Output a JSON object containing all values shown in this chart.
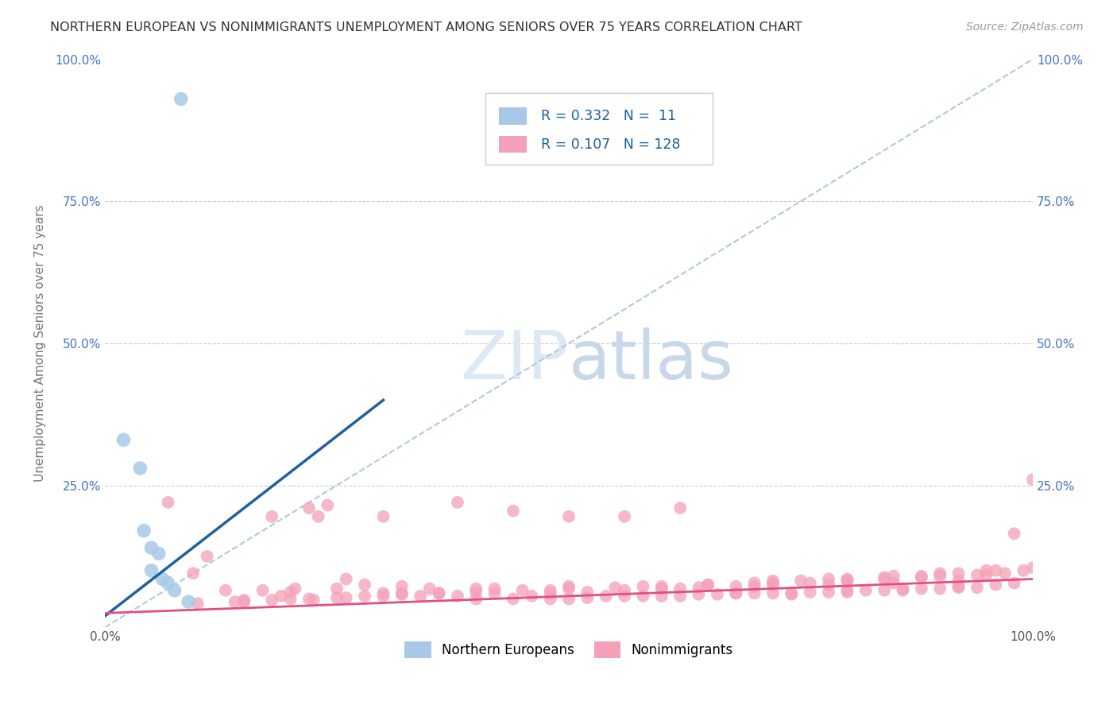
{
  "title": "NORTHERN EUROPEAN VS NONIMMIGRANTS UNEMPLOYMENT AMONG SENIORS OVER 75 YEARS CORRELATION CHART",
  "source": "Source: ZipAtlas.com",
  "ylabel": "Unemployment Among Seniors over 75 years",
  "xlim": [
    0,
    1.0
  ],
  "ylim": [
    0,
    1.0
  ],
  "xtick_labels": [
    "0.0%",
    "",
    "",
    "",
    "100.0%"
  ],
  "xtick_positions": [
    0,
    0.25,
    0.5,
    0.75,
    1.0
  ],
  "ytick_labels": [
    "25.0%",
    "50.0%",
    "75.0%",
    "100.0%"
  ],
  "ytick_positions": [
    0.25,
    0.5,
    0.75,
    1.0
  ],
  "blue_color": "#a8c8e8",
  "pink_color": "#f4a0b8",
  "blue_line_color": "#2060a0",
  "pink_line_color": "#e05080",
  "diagonal_color": "#b0c8e0",
  "background_color": "#ffffff",
  "watermark_zip": "ZIP",
  "watermark_atlas": "atlas",
  "ne_x": [
    0.082,
    0.02,
    0.038,
    0.042,
    0.05,
    0.058,
    0.05,
    0.062,
    0.068,
    0.075,
    0.09
  ],
  "ne_y": [
    0.93,
    0.33,
    0.28,
    0.17,
    0.14,
    0.13,
    0.1,
    0.085,
    0.078,
    0.065,
    0.045
  ],
  "blue_line_x": [
    0.0,
    0.3
  ],
  "blue_line_y": [
    0.02,
    0.4
  ],
  "pink_line_x": [
    0.0,
    1.0
  ],
  "pink_line_y": [
    0.025,
    0.085
  ],
  "ni_x": [
    0.068,
    0.095,
    0.11,
    0.13,
    0.15,
    0.17,
    0.19,
    0.205,
    0.225,
    0.23,
    0.24,
    0.26,
    0.28,
    0.3,
    0.32,
    0.34,
    0.36,
    0.38,
    0.4,
    0.42,
    0.44,
    0.46,
    0.48,
    0.5,
    0.52,
    0.54,
    0.56,
    0.58,
    0.6,
    0.62,
    0.64,
    0.66,
    0.68,
    0.7,
    0.72,
    0.74,
    0.76,
    0.78,
    0.8,
    0.82,
    0.84,
    0.86,
    0.88,
    0.9,
    0.92,
    0.94,
    0.96,
    0.98,
    0.18,
    0.22,
    0.3,
    0.38,
    0.44,
    0.5,
    0.56,
    0.62,
    0.68,
    0.74,
    0.8,
    0.86,
    0.92,
    0.2,
    0.25,
    0.32,
    0.4,
    0.48,
    0.55,
    0.62,
    0.7,
    0.78,
    0.85,
    0.92,
    0.98,
    0.35,
    0.42,
    0.5,
    0.58,
    0.65,
    0.72,
    0.8,
    0.88,
    0.95,
    0.72,
    0.78,
    0.84,
    0.9,
    0.94,
    0.97,
    0.99,
    0.6,
    0.65,
    0.7,
    0.75,
    0.8,
    0.85,
    0.9,
    0.95,
    1.0,
    0.48,
    0.52,
    0.56,
    0.6,
    0.64,
    0.68,
    0.72,
    0.76,
    0.8,
    0.84,
    0.88,
    0.92,
    0.96,
    1.0,
    0.15,
    0.2,
    0.25,
    0.28,
    0.32,
    0.36,
    0.4,
    0.45,
    0.5,
    0.1,
    0.14,
    0.18,
    0.22,
    0.26,
    0.3
  ],
  "ni_y": [
    0.22,
    0.095,
    0.125,
    0.065,
    0.045,
    0.065,
    0.055,
    0.068,
    0.048,
    0.195,
    0.215,
    0.085,
    0.075,
    0.06,
    0.06,
    0.055,
    0.06,
    0.055,
    0.05,
    0.06,
    0.05,
    0.055,
    0.05,
    0.05,
    0.052,
    0.055,
    0.055,
    0.055,
    0.055,
    0.055,
    0.058,
    0.058,
    0.06,
    0.06,
    0.06,
    0.06,
    0.062,
    0.062,
    0.065,
    0.065,
    0.065,
    0.065,
    0.068,
    0.068,
    0.07,
    0.07,
    0.075,
    0.078,
    0.195,
    0.21,
    0.195,
    0.22,
    0.205,
    0.195,
    0.195,
    0.21,
    0.06,
    0.058,
    0.062,
    0.068,
    0.072,
    0.062,
    0.068,
    0.072,
    0.068,
    0.065,
    0.07,
    0.068,
    0.072,
    0.075,
    0.078,
    0.082,
    0.165,
    0.068,
    0.068,
    0.072,
    0.072,
    0.075,
    0.078,
    0.082,
    0.088,
    0.092,
    0.082,
    0.085,
    0.088,
    0.09,
    0.092,
    0.095,
    0.1,
    0.072,
    0.075,
    0.078,
    0.082,
    0.085,
    0.09,
    0.095,
    0.1,
    0.105,
    0.06,
    0.062,
    0.065,
    0.068,
    0.07,
    0.072,
    0.075,
    0.078,
    0.082,
    0.085,
    0.09,
    0.095,
    0.1,
    0.26,
    0.048,
    0.05,
    0.052,
    0.055,
    0.058,
    0.06,
    0.062,
    0.065,
    0.068,
    0.042,
    0.045,
    0.048,
    0.05,
    0.052,
    0.055
  ]
}
